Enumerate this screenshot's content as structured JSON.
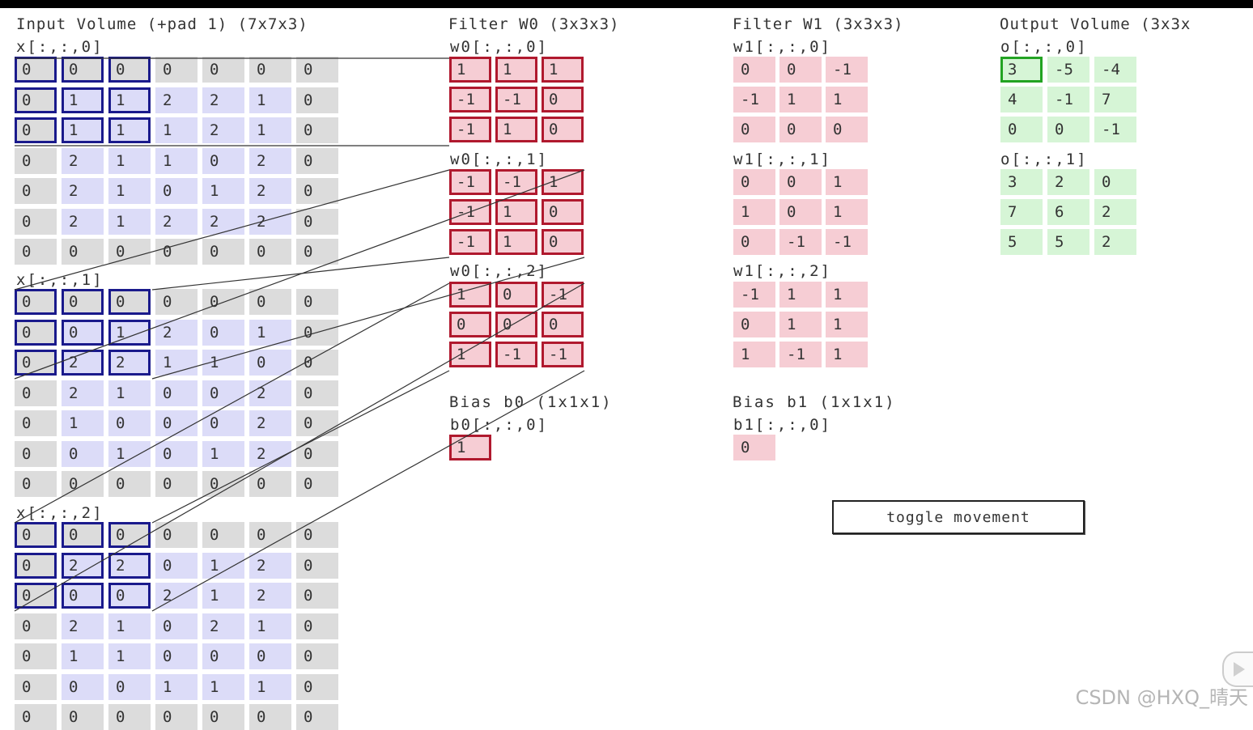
{
  "titles": {
    "input": "Input Volume (+pad 1) (7x7x3)",
    "filter0": "Filter W0 (3x3x3)",
    "filter1": "Filter W1 (3x3x3)",
    "output": "Output Volume (3x3x"
  },
  "input": {
    "slices": [
      {
        "label": "x[:,:,0]",
        "rows": [
          [
            "0",
            "0",
            "0",
            "0",
            "0",
            "0",
            "0"
          ],
          [
            "0",
            "1",
            "1",
            "2",
            "2",
            "1",
            "0"
          ],
          [
            "0",
            "1",
            "1",
            "1",
            "2",
            "1",
            "0"
          ],
          [
            "0",
            "2",
            "1",
            "1",
            "0",
            "2",
            "0"
          ],
          [
            "0",
            "2",
            "1",
            "0",
            "1",
            "2",
            "0"
          ],
          [
            "0",
            "2",
            "1",
            "2",
            "2",
            "2",
            "0"
          ],
          [
            "0",
            "0",
            "0",
            "0",
            "0",
            "0",
            "0"
          ]
        ]
      },
      {
        "label": "x[:,:,1]",
        "rows": [
          [
            "0",
            "0",
            "0",
            "0",
            "0",
            "0",
            "0"
          ],
          [
            "0",
            "0",
            "1",
            "2",
            "0",
            "1",
            "0"
          ],
          [
            "0",
            "2",
            "2",
            "1",
            "1",
            "0",
            "0"
          ],
          [
            "0",
            "2",
            "1",
            "0",
            "0",
            "2",
            "0"
          ],
          [
            "0",
            "1",
            "0",
            "0",
            "0",
            "2",
            "0"
          ],
          [
            "0",
            "0",
            "1",
            "0",
            "1",
            "2",
            "0"
          ],
          [
            "0",
            "0",
            "0",
            "0",
            "0",
            "0",
            "0"
          ]
        ]
      },
      {
        "label": "x[:,:,2]",
        "rows": [
          [
            "0",
            "0",
            "0",
            "0",
            "0",
            "0",
            "0"
          ],
          [
            "0",
            "2",
            "2",
            "0",
            "1",
            "2",
            "0"
          ],
          [
            "0",
            "0",
            "0",
            "2",
            "1",
            "2",
            "0"
          ],
          [
            "0",
            "2",
            "1",
            "0",
            "2",
            "1",
            "0"
          ],
          [
            "0",
            "1",
            "1",
            "0",
            "0",
            "0",
            "0"
          ],
          [
            "0",
            "0",
            "0",
            "1",
            "1",
            "1",
            "0"
          ],
          [
            "0",
            "0",
            "0",
            "0",
            "0",
            "0",
            "0"
          ]
        ]
      }
    ]
  },
  "filter0": {
    "slices": [
      {
        "label": "w0[:,:,0]",
        "rows": [
          [
            "1",
            "1",
            "1"
          ],
          [
            "-1",
            "-1",
            "0"
          ],
          [
            "-1",
            "1",
            "0"
          ]
        ]
      },
      {
        "label": "w0[:,:,1]",
        "rows": [
          [
            "-1",
            "-1",
            "1"
          ],
          [
            "-1",
            "1",
            "0"
          ],
          [
            "-1",
            "1",
            "0"
          ]
        ]
      },
      {
        "label": "w0[:,:,2]",
        "rows": [
          [
            "1",
            "0",
            "-1"
          ],
          [
            "0",
            "0",
            "0"
          ],
          [
            "1",
            "-1",
            "-1"
          ]
        ]
      }
    ],
    "bias_title": "Bias b0 (1x1x1)",
    "bias_label": "b0[:,:,0]",
    "bias_value": "1"
  },
  "filter1": {
    "slices": [
      {
        "label": "w1[:,:,0]",
        "rows": [
          [
            "0",
            "0",
            "-1"
          ],
          [
            "-1",
            "1",
            "1"
          ],
          [
            "0",
            "0",
            "0"
          ]
        ]
      },
      {
        "label": "w1[:,:,1]",
        "rows": [
          [
            "0",
            "0",
            "1"
          ],
          [
            "1",
            "0",
            "1"
          ],
          [
            "0",
            "-1",
            "-1"
          ]
        ]
      },
      {
        "label": "w1[:,:,2]",
        "rows": [
          [
            "-1",
            "1",
            "1"
          ],
          [
            "0",
            "1",
            "1"
          ],
          [
            "1",
            "-1",
            "1"
          ]
        ]
      }
    ],
    "bias_title": "Bias b1 (1x1x1)",
    "bias_label": "b1[:,:,0]",
    "bias_value": "0"
  },
  "output": {
    "slices": [
      {
        "label": "o[:,:,0]",
        "rows": [
          [
            "3",
            "-5",
            "-4"
          ],
          [
            "4",
            "-1",
            "7"
          ],
          [
            "0",
            "0",
            "-1"
          ]
        ]
      },
      {
        "label": "o[:,:,1]",
        "rows": [
          [
            "3",
            "2",
            "0"
          ],
          [
            "7",
            "6",
            "2"
          ],
          [
            "5",
            "5",
            "2"
          ]
        ]
      }
    ]
  },
  "toggle_label": "toggle movement",
  "watermark": "CSDN @HXQ_晴天",
  "colors": {
    "input_pad": "#dcdcdc",
    "input_inner": "#dcdcf8",
    "filter": "#f6cdd4",
    "output": "#d6f5d6",
    "input_highlight": "#1a1a8c",
    "filter_highlight": "#b0192e",
    "output_highlight": "#23a323"
  }
}
